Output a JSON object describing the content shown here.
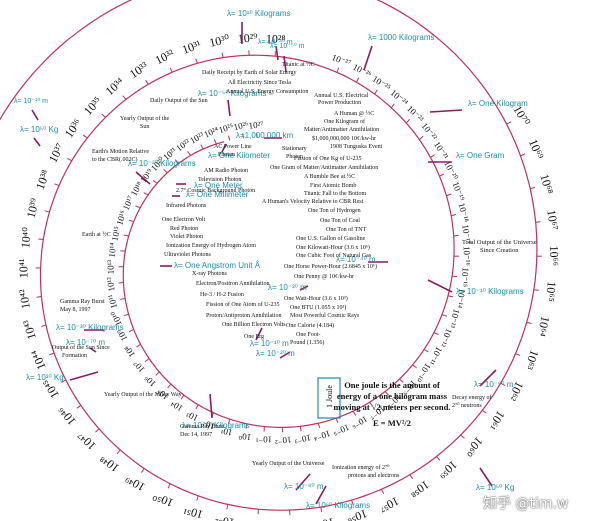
{
  "spiral": {
    "inner_labels": [
      "10²⁷",
      "10²⁶",
      "10²⁵",
      "10²⁴",
      "10²³",
      "10²²",
      "10²¹",
      "10²⁰",
      "10¹⁹",
      "10¹⁸",
      "10¹⁷",
      "10¹⁶",
      "10¹⁵",
      "10¹⁴",
      "10¹³",
      "10¹²",
      "10¹¹",
      "10¹⁰",
      "10⁹",
      "10⁸",
      "10⁷",
      "10⁶",
      "10⁵",
      "10⁴",
      "10³",
      "10²",
      "10¹",
      "10⁰",
      "10⁻¹",
      "10⁻²",
      "10⁻³",
      "10⁻⁴",
      "10⁻⁵",
      "10⁻⁶",
      "10⁻⁷",
      "10⁻⁸",
      "10⁻⁹",
      "10⁻¹⁰",
      "10⁻¹¹",
      "10⁻¹²",
      "10⁻¹³",
      "10⁻¹⁴",
      "10⁻¹⁵",
      "10⁻¹⁶",
      "10⁻¹⁷",
      "10⁻¹⁸",
      "10⁻¹⁹",
      "10⁻²⁰",
      "10⁻²¹",
      "10⁻²²",
      "10⁻²³",
      "10⁻²⁴",
      "10⁻²⁵",
      "10⁻²⁶",
      "10⁻²⁷"
    ],
    "outer_labels": [
      "10²⁸",
      "10²⁹",
      "10³⁰",
      "10³¹",
      "10³²",
      "10³³",
      "10³⁴",
      "10³⁵",
      "10³⁶",
      "10³⁷",
      "10³⁸",
      "10³⁹",
      "10⁴⁰",
      "10⁴¹",
      "10⁴²",
      "10⁴³",
      "10⁴⁴",
      "10⁴⁵",
      "10⁴⁶",
      "10⁴⁷",
      "10⁴⁸",
      "10⁴⁹",
      "10⁵⁰",
      "10⁵¹",
      "10⁵²",
      "10⁵³",
      "10⁵⁴",
      "10⁵⁵",
      "10⁵⁶",
      "10⁵⁷",
      "10⁵⁸",
      "10⁵⁹",
      "10⁶⁰",
      "10⁶¹",
      "10⁶²",
      "10⁶³",
      "10⁶⁴",
      "10⁶⁵",
      "10⁶⁶",
      "10⁶⁷",
      "10⁶⁸",
      "10⁶⁹",
      "10⁷⁰"
    ]
  },
  "lambda_markers": [
    {
      "id": "lam-kg-top",
      "text": "λ= 10¹⁰ Kilograms"
    },
    {
      "id": "lam-1000kg",
      "text": "λ= 1000 Kilograms"
    },
    {
      "id": "lam-1kg",
      "text": "λ= One Kilogram"
    },
    {
      "id": "lam-1g",
      "text": "λ= One Gram"
    },
    {
      "id": "lam-m10kg",
      "text": "λ= 10⁻¹⁰ Kilograms"
    },
    {
      "id": "lam-m20kg",
      "text": "λ= 10⁻²⁰ Kilograms"
    },
    {
      "id": "lam-m30kg",
      "text": "λ= 10⁻³⁰ Kilograms"
    },
    {
      "id": "lam-m20kg-left",
      "text": "λ= 10⁻²⁰ Kilograms"
    },
    {
      "id": "lam-m50kg",
      "text": "λ= 10⁻⁵⁰ Kilograms"
    },
    {
      "id": "lam-50kg",
      "text": "λ= 10⁵⁰ Kg"
    },
    {
      "id": "lam-30kg",
      "text": "λ= 10³⁰ Kg"
    },
    {
      "id": "lam-60kg",
      "text": "λ= 10⁶⁰ Kilograms"
    },
    {
      "id": "lam-50kg-right",
      "text": "λ= 10⁵⁰ Kg"
    },
    {
      "id": "lam-1mkm",
      "text": "λ=1,000,000 km"
    },
    {
      "id": "lam-1km",
      "text": "λ= One Kilometer"
    },
    {
      "id": "lam-1m",
      "text": "λ= One Meter"
    },
    {
      "id": "lam-1mm",
      "text": "λ= One Millimeter"
    },
    {
      "id": "lam-angstrom",
      "text": "λ= One Angstrom Unit Å"
    },
    {
      "id": "lam-m10m",
      "text": "λ= 10⁻¹⁰ m"
    },
    {
      "id": "lam-m20m",
      "text": "λ= 10⁻²⁰ m"
    },
    {
      "id": "lam-m30m",
      "text": "λ= 10⁻³⁰ m"
    },
    {
      "id": "lam-m40m-top",
      "text": "λ= 10⁻⁴⁰ m"
    },
    {
      "id": "lam-m40m",
      "text": "λ= 10⁻⁴⁰ m"
    },
    {
      "id": "lam-m50m",
      "text": "λ= 10⁻⁵⁰ m"
    },
    {
      "id": "lam-m60m",
      "text": "λ= 10⁻⁶⁰ m"
    },
    {
      "id": "lam-m70m",
      "text": "λ= 10⁻⁷⁰ m"
    },
    {
      "id": "lam-m80m",
      "text": "λ= 10⁻⁸⁰ m"
    },
    {
      "id": "lam-m10m-left",
      "text": "λ= 10⁻¹⁰ m"
    }
  ],
  "events": [
    {
      "id": "ev-titanic-c",
      "text": "Titanic at ½C"
    },
    {
      "id": "ev-solar-daily",
      "text": "Daily Receipt by Earth of Solar Energy"
    },
    {
      "id": "ev-tesla",
      "text": "All Electricity Since Tesla"
    },
    {
      "id": "ev-us-consumption",
      "text": "Annual U.S. Energy Consumption"
    },
    {
      "id": "ev-us-power",
      "text": "Annual U.S. Electrical"
    },
    {
      "id": "ev-us-power2",
      "text": "Power Production"
    },
    {
      "id": "ev-human-c",
      "text": "A Human @ ½C"
    },
    {
      "id": "ev-one-kg-mat",
      "text": "One Kilogram of"
    },
    {
      "id": "ev-annih",
      "text": "Matter/Antimatter Annihilation"
    },
    {
      "id": "ev-dollar",
      "text": "$1,000,000,000 10¢/kw-hr"
    },
    {
      "id": "ev-tunguska",
      "text": "1908 Tunguska Event"
    },
    {
      "id": "ev-fission-kg",
      "text": "Fission of One Kg of U-235"
    },
    {
      "id": "ev-one-gram-mat",
      "text": "One Gram of Matter/Antimatter Annihilation"
    },
    {
      "id": "ev-bee",
      "text": "A Bumble Bee at ½C"
    },
    {
      "id": "ev-atomic",
      "text": "First Atomic Bomb"
    },
    {
      "id": "ev-titanic-fall",
      "text": "Titanic Fall to the Bottom"
    },
    {
      "id": "ev-human-cbr",
      "text": "A Human's Velocity Relative to CBR Rest"
    },
    {
      "id": "ev-ton-h",
      "text": "One Ton of Hydrogen"
    },
    {
      "id": "ev-ton-coal",
      "text": "One Ton of Coal"
    },
    {
      "id": "ev-ton-tnt",
      "text": "One Ton of TNT"
    },
    {
      "id": "ev-gasoline",
      "text": "One U.S. Gallon of Gasoline"
    },
    {
      "id": "ev-kwh",
      "text": "One Kilowatt-Hour (3.6 x 10⁶)"
    },
    {
      "id": "ev-gas",
      "text": "One Cubic Foot of Natural Gas"
    },
    {
      "id": "ev-hp",
      "text": "One Horse Power-Hour (2.6845 x 10⁶)"
    },
    {
      "id": "ev-penny",
      "text": "One Penny @ 10¢/kw-hr"
    },
    {
      "id": "ev-watthour",
      "text": "One Watt-Hour (3.6 x 10³)"
    },
    {
      "id": "ev-btu",
      "text": "One BTU (1.055 x 10³)"
    },
    {
      "id": "ev-cosmic",
      "text": "Most Powerful Cosmic Rays"
    },
    {
      "id": "ev-calorie",
      "text": "One Calorie (4.184)"
    },
    {
      "id": "ev-footpound",
      "text": "One Foot-"
    },
    {
      "id": "ev-footpound2",
      "text": "Pound (1.356)"
    },
    {
      "id": "ev-erg",
      "text": "One Erg"
    },
    {
      "id": "ev-gev",
      "text": "One Billion Electron Volts"
    },
    {
      "id": "ev-proton",
      "text": "Proton/Antiproton Annihilation"
    },
    {
      "id": "ev-u235",
      "text": "Fission of One Atom of U-235"
    },
    {
      "id": "ev-he",
      "text": "He-3 / H-2 Fusion"
    },
    {
      "id": "ev-electron",
      "text": "Electron/Positron Annihilation"
    },
    {
      "id": "ev-xray",
      "text": "X-ray Photons"
    },
    {
      "id": "ev-uv",
      "text": "Ultraviolet Photons"
    },
    {
      "id": "ev-ion",
      "text": "Ionization Energy of  Hydrogen Atom"
    },
    {
      "id": "ev-violet",
      "text": "Violet Photon"
    },
    {
      "id": "ev-red",
      "text": "Red Photon"
    },
    {
      "id": "ev-ev",
      "text": "One Electron Volt"
    },
    {
      "id": "ev-ir",
      "text": "Infrared Photons"
    },
    {
      "id": "ev-cbp",
      "text": "2.7° Cosmic Background Photon"
    },
    {
      "id": "ev-tv",
      "text": "Television Photon"
    },
    {
      "id": "ev-am",
      "text": "AM Radio Photon"
    },
    {
      "id": "ev-acpl",
      "text": "AC Power Line"
    },
    {
      "id": "ev-acpl2",
      "text": "Photon"
    },
    {
      "id": "ev-stationary",
      "text": "Stationary"
    },
    {
      "id": "ev-stationary2",
      "text": "Photon"
    },
    {
      "id": "ev-sun-daily",
      "text": "Daily Output of the Sun"
    },
    {
      "id": "ev-sun-yearly",
      "text": "Yearly Output of the"
    },
    {
      "id": "ev-sun-yearly2",
      "text": "Sun"
    },
    {
      "id": "ev-earth-motion",
      "text": "Earth's Motion Relative"
    },
    {
      "id": "ev-earth-motion2",
      "text": "to the CBR(.002C)"
    },
    {
      "id": "ev-earth-c",
      "text": "Earth at ½C"
    },
    {
      "id": "ev-grb1",
      "text": "Gamma Ray Burst"
    },
    {
      "id": "ev-grb1b",
      "text": "May 8, 1997"
    },
    {
      "id": "ev-sun-formation",
      "text": "Output of the Sun Since"
    },
    {
      "id": "ev-sun-formation2",
      "text": "Formation"
    },
    {
      "id": "ev-milky",
      "text": "Yearly Output of the Milky Way"
    },
    {
      "id": "ev-grb2",
      "text": "Gamma Ray Burst"
    },
    {
      "id": "ev-grb2b",
      "text": "Dec 14, 1997"
    },
    {
      "id": "ev-universe",
      "text": "Yearly Output of the Universe"
    },
    {
      "id": "ev-ionization",
      "text": "Ionization energy of 2⁷⁰"
    },
    {
      "id": "ev-ionization2",
      "text": "protons and electrons"
    },
    {
      "id": "ev-decay",
      "text": "Decay energy of"
    },
    {
      "id": "ev-decay2",
      "text": "2⁷⁰ neutrons"
    },
    {
      "id": "ev-total",
      "text": "Total Output of the Universe"
    },
    {
      "id": "ev-total2",
      "text": "Since Creation"
    }
  ],
  "center_note": {
    "joule_box": "1 Joule",
    "line1": "One joule is the amount of",
    "line2": "energy of a one kilogram mass",
    "line3": "moving at √2 meters per second.",
    "formula": "E = MV²/2"
  },
  "watermark": "知乎 @tim.w",
  "colors": {
    "spiral": "#c0305a",
    "lambda": "#1a8fb0",
    "arrow": "#8a1a6a",
    "ink": "#111111"
  }
}
